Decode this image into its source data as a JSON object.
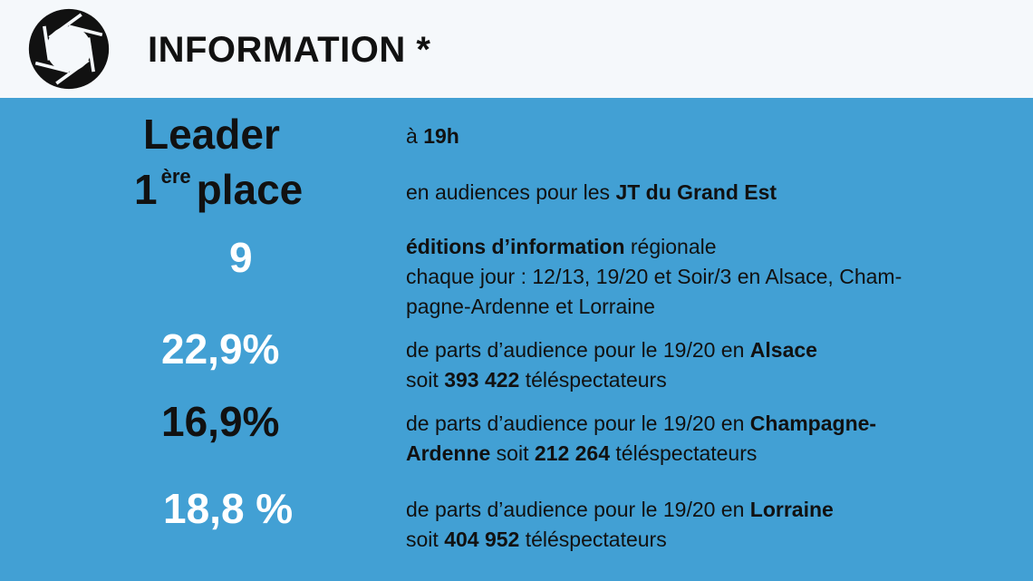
{
  "header": {
    "title": "INFORMATION *",
    "logo_icon": "camera-aperture-icon"
  },
  "rows": [
    {
      "stat": "Leader",
      "desc": {
        "t1": "à ",
        "b1": "19h"
      }
    },
    {
      "stat_main": "1",
      "stat_sup": "ère",
      "stat_rest": "place",
      "desc": {
        "t1": "en audiences pour les ",
        "b1": "JT du Grand Est"
      }
    },
    {
      "stat": "9",
      "desc": {
        "b1": "éditions d’information",
        "t1": " régionale",
        "line2": "chaque jour : 12/13, 19/20 et Soir/3 en Alsace, Cham-",
        "line3": "pagne-Ardenne et Lorraine"
      }
    },
    {
      "stat": "22,9%",
      "desc": {
        "t1": "de parts d’audience pour le 19/20 en ",
        "b1": "Alsace",
        "t2": "soit ",
        "b2": "393 422",
        "t3": " téléspectateurs"
      }
    },
    {
      "stat": "16,9%",
      "desc": {
        "t1": "de parts d’audience pour le 19/20 en ",
        "b1": "Champagne-",
        "b2": "Ardenne",
        "t2": " soit ",
        "b3": "212 264",
        "t3": " téléspectateurs"
      }
    },
    {
      "stat": "18,8 %",
      "desc": {
        "t1": "de parts d’audience pour le 19/20 en ",
        "b1": "Lorraine",
        "t2": "soit ",
        "b2": "404 952",
        "t3": " téléspectateurs"
      }
    }
  ],
  "colors": {
    "background": "#42a0d4",
    "header_bg": "#f5f8fb",
    "text_dark": "#111111",
    "text_light": "#ffffff"
  }
}
